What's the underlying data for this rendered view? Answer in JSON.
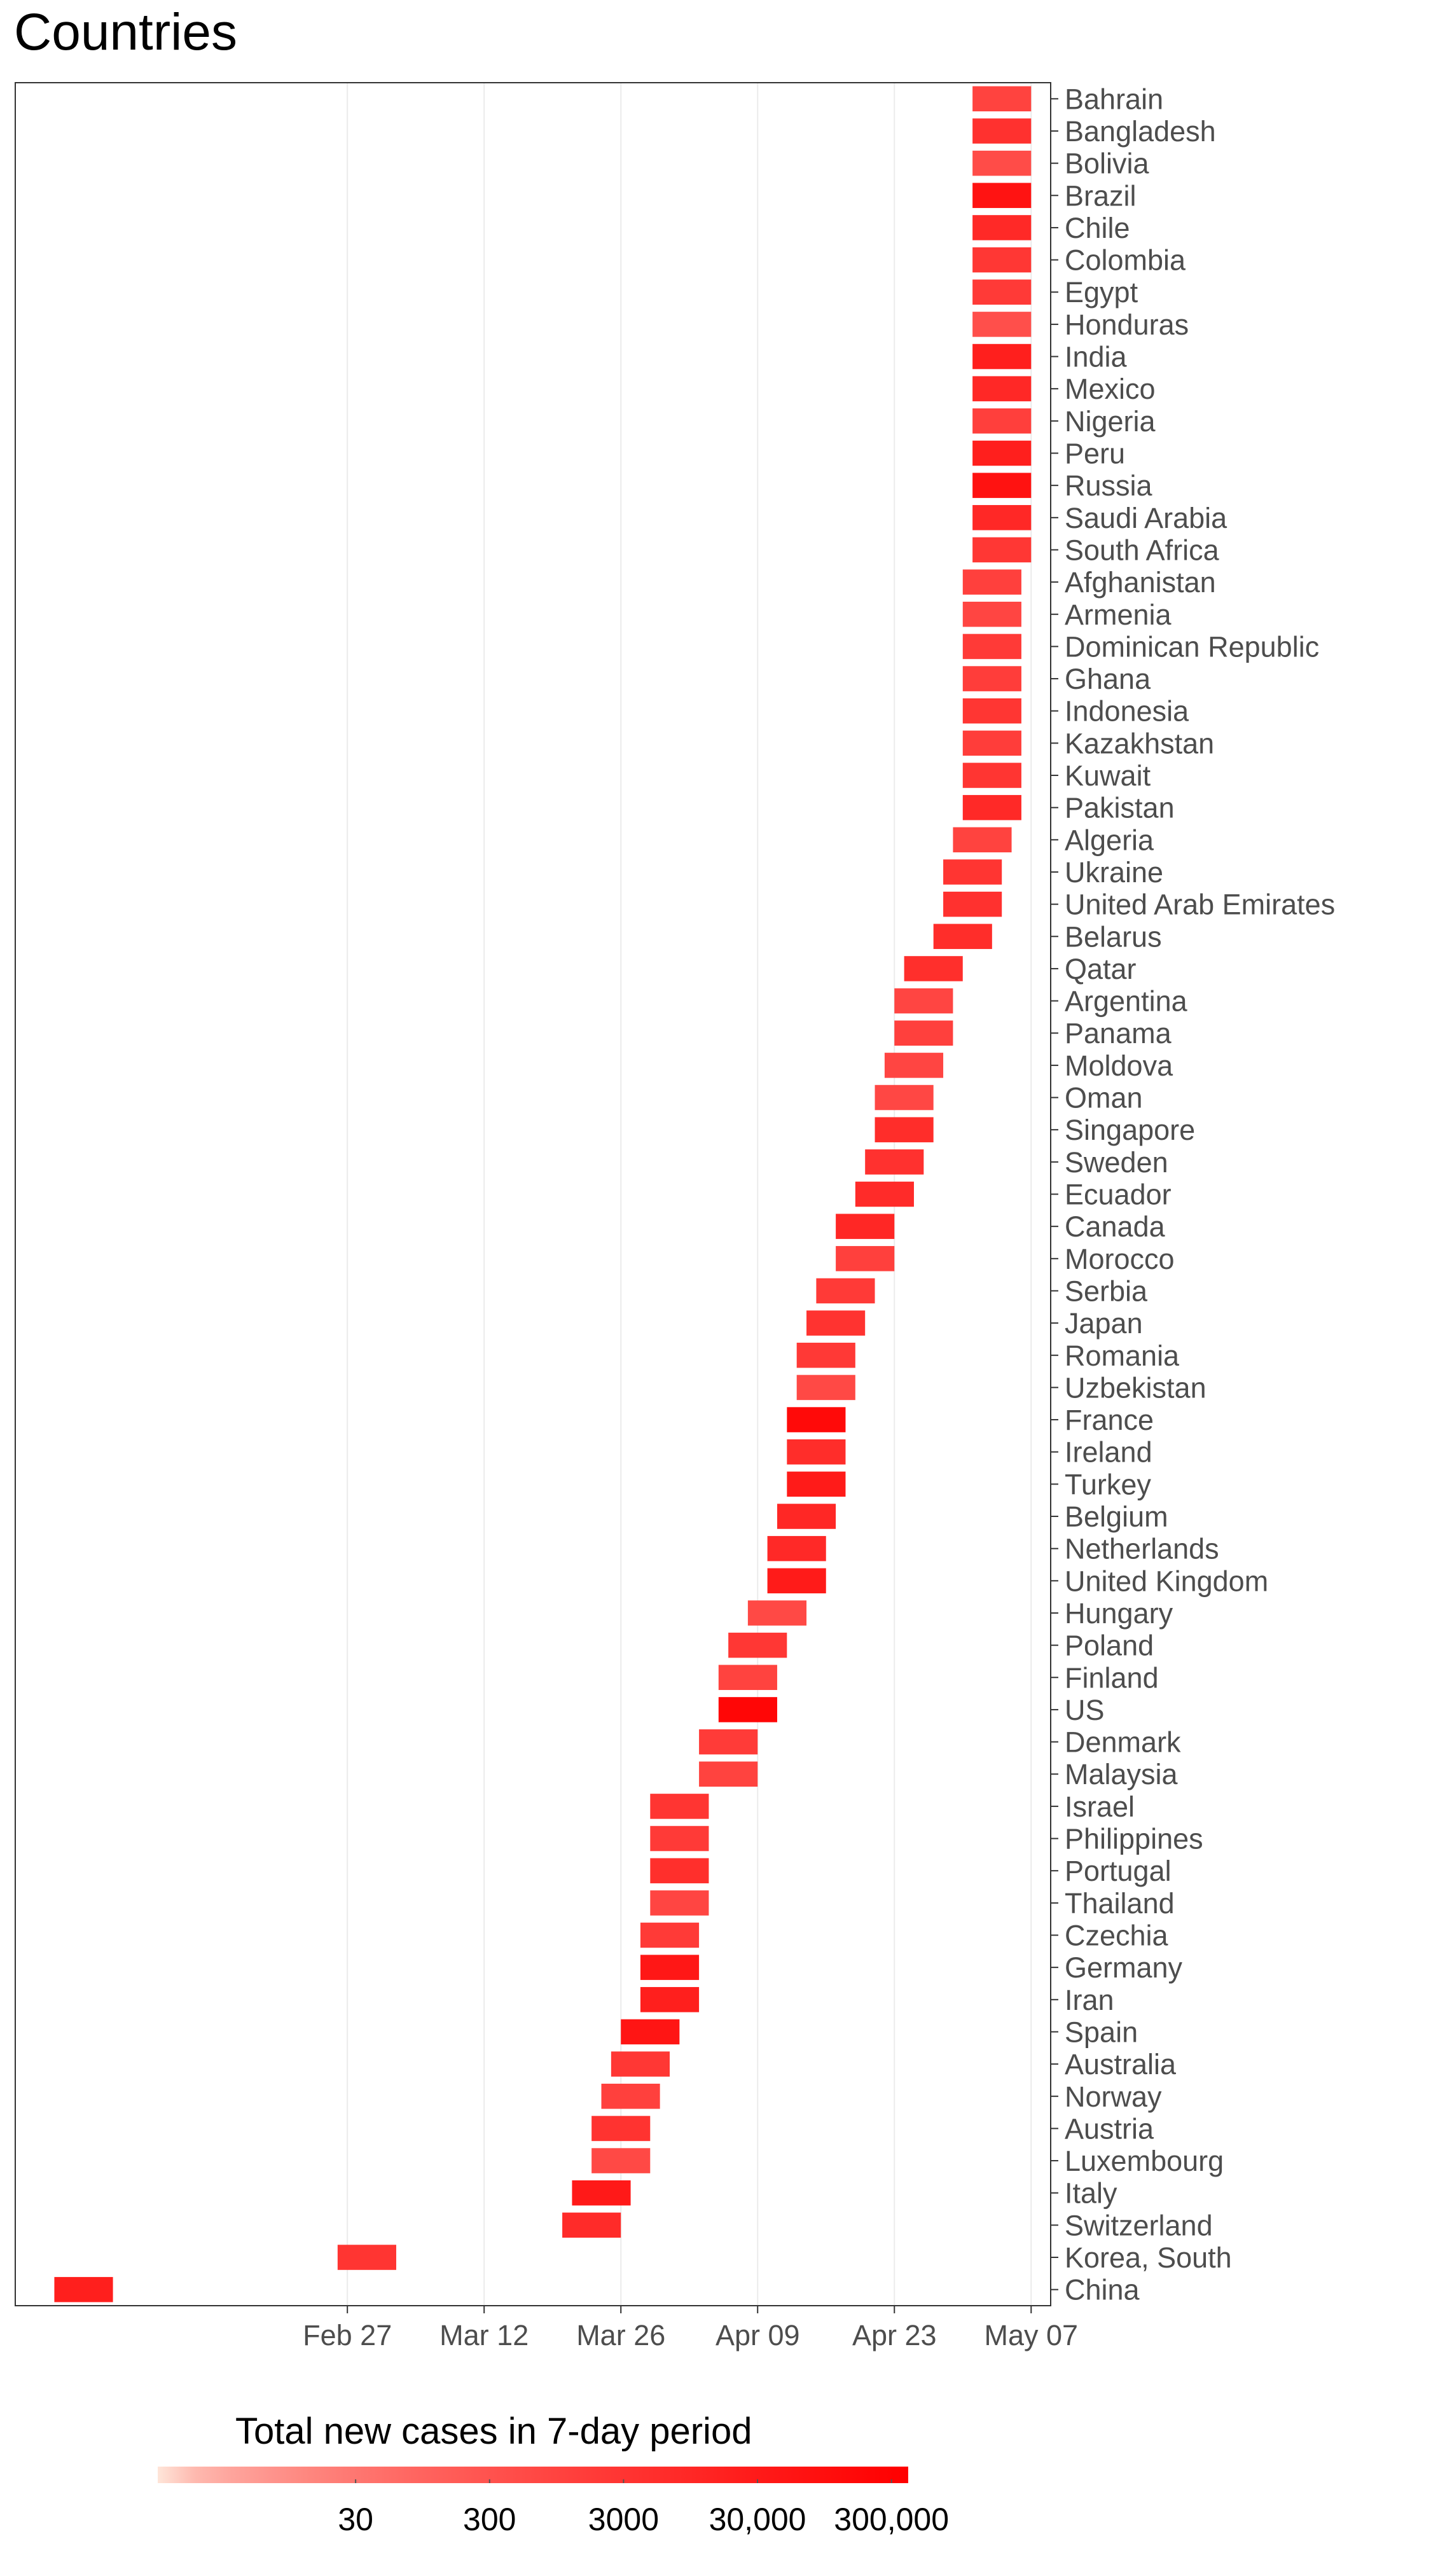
{
  "chart_data": {
    "type": "bar",
    "orientation": "horizontal-range",
    "title": "Countries",
    "x_axis": {
      "type": "date",
      "range": [
        "2020-01-24",
        "2020-05-09"
      ],
      "ticks": [
        {
          "date": "2020-02-27",
          "label": "Feb 27"
        },
        {
          "date": "2020-03-12",
          "label": "Mar 12"
        },
        {
          "date": "2020-03-26",
          "label": "Mar 26"
        },
        {
          "date": "2020-04-09",
          "label": "Apr 09"
        },
        {
          "date": "2020-04-23",
          "label": "Apr 23"
        },
        {
          "date": "2020-05-07",
          "label": "May 07"
        }
      ],
      "grid": true
    },
    "series": [
      {
        "country": "Bahrain",
        "start": "2020-05-01",
        "end": "2020-05-07",
        "cases": 1000
      },
      {
        "country": "Bangladesh",
        "start": "2020-05-01",
        "end": "2020-05-07",
        "cases": 4000
      },
      {
        "country": "Bolivia",
        "start": "2020-05-01",
        "end": "2020-05-07",
        "cases": 500
      },
      {
        "country": "Brazil",
        "start": "2020-05-01",
        "end": "2020-05-07",
        "cases": 60000
      },
      {
        "country": "Chile",
        "start": "2020-05-01",
        "end": "2020-05-07",
        "cases": 8000
      },
      {
        "country": "Colombia",
        "start": "2020-05-01",
        "end": "2020-05-07",
        "cases": 2500
      },
      {
        "country": "Egypt",
        "start": "2020-05-01",
        "end": "2020-05-07",
        "cases": 2000
      },
      {
        "country": "Honduras",
        "start": "2020-05-01",
        "end": "2020-05-07",
        "cases": 400
      },
      {
        "country": "India",
        "start": "2020-05-01",
        "end": "2020-05-07",
        "cases": 20000
      },
      {
        "country": "Mexico",
        "start": "2020-05-01",
        "end": "2020-05-07",
        "cases": 9000
      },
      {
        "country": "Nigeria",
        "start": "2020-05-01",
        "end": "2020-05-07",
        "cases": 1300
      },
      {
        "country": "Peru",
        "start": "2020-05-01",
        "end": "2020-05-07",
        "cases": 20000
      },
      {
        "country": "Russia",
        "start": "2020-05-01",
        "end": "2020-05-07",
        "cases": 70000
      },
      {
        "country": "Saudi Arabia",
        "start": "2020-05-01",
        "end": "2020-05-07",
        "cases": 9000
      },
      {
        "country": "South Africa",
        "start": "2020-05-01",
        "end": "2020-05-07",
        "cases": 2500
      },
      {
        "country": "Afghanistan",
        "start": "2020-04-30",
        "end": "2020-05-06",
        "cases": 1200
      },
      {
        "country": "Armenia",
        "start": "2020-04-30",
        "end": "2020-05-06",
        "cases": 800
      },
      {
        "country": "Dominican Republic",
        "start": "2020-04-30",
        "end": "2020-05-06",
        "cases": 2000
      },
      {
        "country": "Ghana",
        "start": "2020-04-30",
        "end": "2020-05-06",
        "cases": 1500
      },
      {
        "country": "Indonesia",
        "start": "2020-04-30",
        "end": "2020-05-06",
        "cases": 2700
      },
      {
        "country": "Kazakhstan",
        "start": "2020-04-30",
        "end": "2020-05-06",
        "cases": 1500
      },
      {
        "country": "Kuwait",
        "start": "2020-04-30",
        "end": "2020-05-06",
        "cases": 3000
      },
      {
        "country": "Pakistan",
        "start": "2020-04-30",
        "end": "2020-05-06",
        "cases": 8000
      },
      {
        "country": "Algeria",
        "start": "2020-04-29",
        "end": "2020-05-05",
        "cases": 1000
      },
      {
        "country": "Ukraine",
        "start": "2020-04-28",
        "end": "2020-05-04",
        "cases": 3000
      },
      {
        "country": "United Arab Emirates",
        "start": "2020-04-28",
        "end": "2020-05-04",
        "cases": 4000
      },
      {
        "country": "Belarus",
        "start": "2020-04-27",
        "end": "2020-05-03",
        "cases": 6000
      },
      {
        "country": "Qatar",
        "start": "2020-04-24",
        "end": "2020-04-30",
        "cases": 5000
      },
      {
        "country": "Argentina",
        "start": "2020-04-23",
        "end": "2020-04-29",
        "cases": 800
      },
      {
        "country": "Panama",
        "start": "2020-04-23",
        "end": "2020-04-29",
        "cases": 1200
      },
      {
        "country": "Moldova",
        "start": "2020-04-22",
        "end": "2020-04-28",
        "cases": 800
      },
      {
        "country": "Oman",
        "start": "2020-04-21",
        "end": "2020-04-27",
        "cases": 700
      },
      {
        "country": "Singapore",
        "start": "2020-04-21",
        "end": "2020-04-27",
        "cases": 6000
      },
      {
        "country": "Sweden",
        "start": "2020-04-20",
        "end": "2020-04-26",
        "cases": 4000
      },
      {
        "country": "Ecuador",
        "start": "2020-04-19",
        "end": "2020-04-25",
        "cases": 7000
      },
      {
        "country": "Canada",
        "start": "2020-04-17",
        "end": "2020-04-23",
        "cases": 10000
      },
      {
        "country": "Morocco",
        "start": "2020-04-17",
        "end": "2020-04-23",
        "cases": 1200
      },
      {
        "country": "Serbia",
        "start": "2020-04-15",
        "end": "2020-04-21",
        "cases": 2000
      },
      {
        "country": "Japan",
        "start": "2020-04-14",
        "end": "2020-04-20",
        "cases": 3500
      },
      {
        "country": "Romania",
        "start": "2020-04-13",
        "end": "2020-04-19",
        "cases": 2200
      },
      {
        "country": "Uzbekistan",
        "start": "2020-04-13",
        "end": "2020-04-19",
        "cases": 600
      },
      {
        "country": "France",
        "start": "2020-04-12",
        "end": "2020-04-18",
        "cases": 150000
      },
      {
        "country": "Ireland",
        "start": "2020-04-12",
        "end": "2020-04-18",
        "cases": 6000
      },
      {
        "country": "Turkey",
        "start": "2020-04-12",
        "end": "2020-04-18",
        "cases": 30000
      },
      {
        "country": "Belgium",
        "start": "2020-04-11",
        "end": "2020-04-17",
        "cases": 10000
      },
      {
        "country": "Netherlands",
        "start": "2020-04-10",
        "end": "2020-04-16",
        "cases": 8000
      },
      {
        "country": "United Kingdom",
        "start": "2020-04-10",
        "end": "2020-04-16",
        "cases": 30000
      },
      {
        "country": "Hungary",
        "start": "2020-04-08",
        "end": "2020-04-14",
        "cases": 600
      },
      {
        "country": "Poland",
        "start": "2020-04-06",
        "end": "2020-04-12",
        "cases": 2500
      },
      {
        "country": "Finland",
        "start": "2020-04-05",
        "end": "2020-04-11",
        "cases": 1000
      },
      {
        "country": "US",
        "start": "2020-04-05",
        "end": "2020-04-11",
        "cases": 220000
      },
      {
        "country": "Denmark",
        "start": "2020-04-03",
        "end": "2020-04-09",
        "cases": 1800
      },
      {
        "country": "Malaysia",
        "start": "2020-04-03",
        "end": "2020-04-09",
        "cases": 1000
      },
      {
        "country": "Israel",
        "start": "2020-03-29",
        "end": "2020-04-04",
        "cases": 3000
      },
      {
        "country": "Philippines",
        "start": "2020-03-29",
        "end": "2020-04-04",
        "cases": 2000
      },
      {
        "country": "Portugal",
        "start": "2020-03-29",
        "end": "2020-04-04",
        "cases": 5000
      },
      {
        "country": "Thailand",
        "start": "2020-03-29",
        "end": "2020-04-04",
        "cases": 800
      },
      {
        "country": "Czechia",
        "start": "2020-03-28",
        "end": "2020-04-03",
        "cases": 2000
      },
      {
        "country": "Germany",
        "start": "2020-03-28",
        "end": "2020-04-03",
        "cases": 40000
      },
      {
        "country": "Iran",
        "start": "2020-03-28",
        "end": "2020-04-03",
        "cases": 20000
      },
      {
        "country": "Spain",
        "start": "2020-03-26",
        "end": "2020-04-01",
        "cases": 50000
      },
      {
        "country": "Australia",
        "start": "2020-03-25",
        "end": "2020-03-31",
        "cases": 2500
      },
      {
        "country": "Norway",
        "start": "2020-03-24",
        "end": "2020-03-30",
        "cases": 1200
      },
      {
        "country": "Austria",
        "start": "2020-03-23",
        "end": "2020-03-29",
        "cases": 3500
      },
      {
        "country": "Luxembourg",
        "start": "2020-03-23",
        "end": "2020-03-29",
        "cases": 600
      },
      {
        "country": "Italy",
        "start": "2020-03-21",
        "end": "2020-03-27",
        "cases": 35000
      },
      {
        "country": "Switzerland",
        "start": "2020-03-20",
        "end": "2020-03-26",
        "cases": 7000
      },
      {
        "country": "Korea, South",
        "start": "2020-02-26",
        "end": "2020-03-03",
        "cases": 3000
      },
      {
        "country": "China",
        "start": "2020-01-28",
        "end": "2020-02-03",
        "cases": 20000
      }
    ],
    "legend": {
      "title": "Total new cases in 7-day period",
      "position": "bottom",
      "scale": "log",
      "range": [
        1,
        400000
      ],
      "ticks": [
        {
          "value": 30,
          "label": "30"
        },
        {
          "value": 300,
          "label": "300"
        },
        {
          "value": 3000,
          "label": "3000"
        },
        {
          "value": 30000,
          "label": "30,000"
        },
        {
          "value": 300000,
          "label": "300,000"
        }
      ],
      "color_low": "#fee5d9",
      "color_high": "#ff0000"
    },
    "colors": {
      "axis": "#333333",
      "grid": "#ebebeb",
      "tick_text": "#4d4d4d"
    }
  }
}
